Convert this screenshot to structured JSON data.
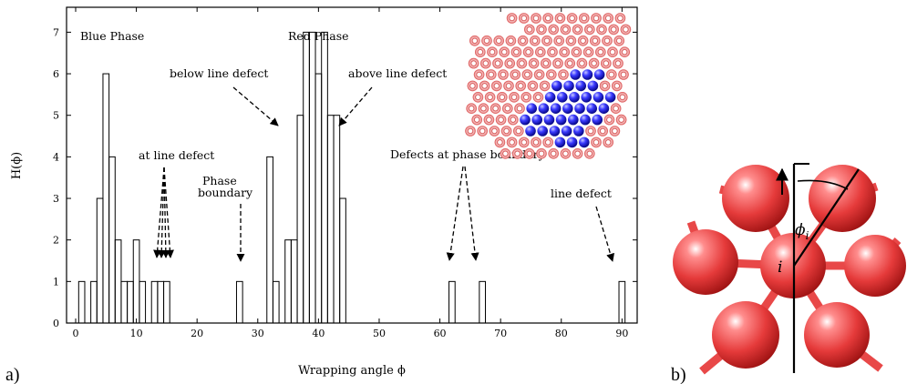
{
  "panels": {
    "a": "a)",
    "b": "b)"
  },
  "chart_data": {
    "type": "bar",
    "xlabel": "Wrapping angle ϕ",
    "ylabel": "H(ϕ)",
    "xlim": [
      -1.5,
      92.5
    ],
    "ylim": [
      0,
      7.6
    ],
    "xticks": [
      0,
      10,
      20,
      30,
      40,
      50,
      60,
      70,
      80,
      90
    ],
    "yticks": [
      0,
      1,
      2,
      3,
      4,
      5,
      6,
      7
    ],
    "bin_width": 1,
    "bins": [
      {
        "x": 1,
        "h": 1
      },
      {
        "x": 3,
        "h": 1
      },
      {
        "x": 4,
        "h": 3
      },
      {
        "x": 5,
        "h": 6
      },
      {
        "x": 6,
        "h": 4
      },
      {
        "x": 7,
        "h": 2
      },
      {
        "x": 8,
        "h": 1
      },
      {
        "x": 9,
        "h": 1
      },
      {
        "x": 10,
        "h": 2
      },
      {
        "x": 11,
        "h": 1
      },
      {
        "x": 13,
        "h": 1
      },
      {
        "x": 14,
        "h": 1
      },
      {
        "x": 15,
        "h": 1
      },
      {
        "x": 27,
        "h": 1
      },
      {
        "x": 32,
        "h": 4
      },
      {
        "x": 33,
        "h": 1
      },
      {
        "x": 35,
        "h": 2
      },
      {
        "x": 36,
        "h": 2
      },
      {
        "x": 37,
        "h": 5
      },
      {
        "x": 38,
        "h": 7
      },
      {
        "x": 39,
        "h": 7
      },
      {
        "x": 40,
        "h": 6
      },
      {
        "x": 41,
        "h": 7
      },
      {
        "x": 42,
        "h": 5
      },
      {
        "x": 43,
        "h": 5
      },
      {
        "x": 44,
        "h": 3
      },
      {
        "x": 62,
        "h": 1
      },
      {
        "x": 67,
        "h": 1
      },
      {
        "x": 90,
        "h": 1
      }
    ],
    "annotations": [
      {
        "id": "blue-phase",
        "lines": [
          "Blue Phase"
        ]
      },
      {
        "id": "red-phase",
        "lines": [
          "Red Phase"
        ]
      },
      {
        "id": "below-line-defect",
        "lines": [
          "below line defect"
        ]
      },
      {
        "id": "above-line-defect",
        "lines": [
          "above line defect"
        ]
      },
      {
        "id": "at-line-defect",
        "lines": [
          "at line defect"
        ]
      },
      {
        "id": "phase-boundary",
        "lines": [
          "Phase",
          "boundary"
        ]
      },
      {
        "id": "defects-phase-boundary",
        "lines": [
          "Defects at phase boundary"
        ]
      },
      {
        "id": "line-defect",
        "lines": [
          "line defect"
        ]
      }
    ]
  },
  "geometry_labels": {
    "angle": "ϕ",
    "angle_sub": "i",
    "site": "i"
  }
}
